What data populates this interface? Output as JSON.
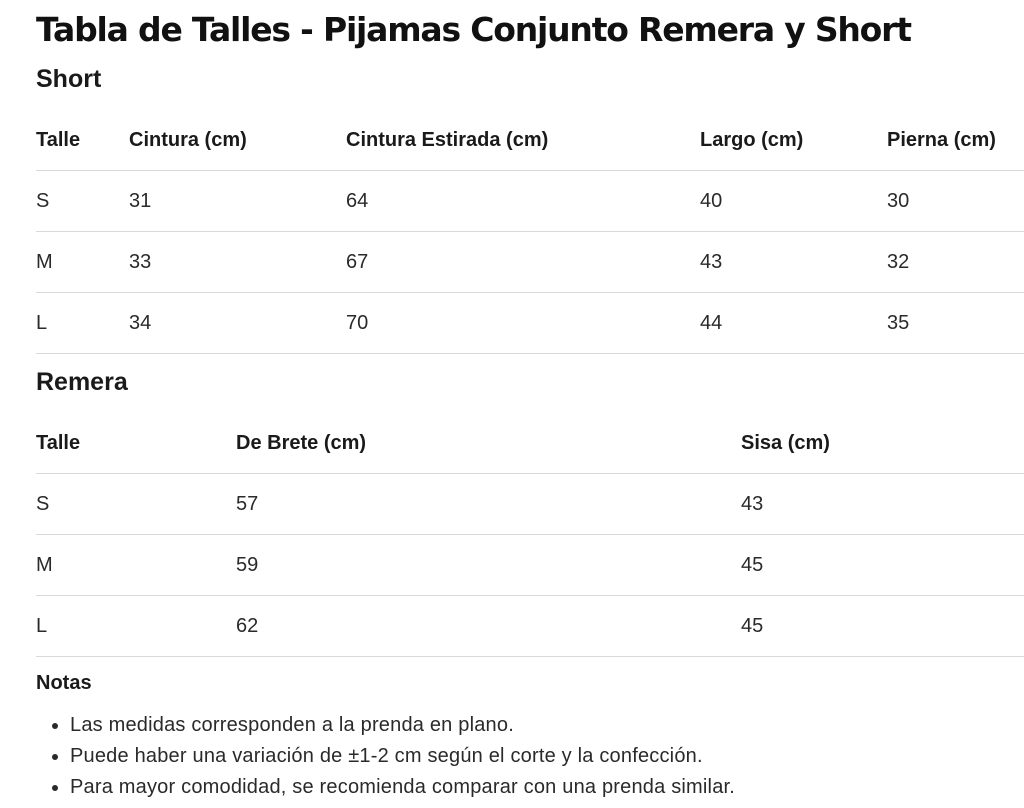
{
  "page": {
    "title": "Tabla de Talles - Pijamas Conjunto Remera y Short"
  },
  "short": {
    "title": "Short",
    "headers": [
      "Talle",
      "Cintura (cm)",
      "Cintura Estirada (cm)",
      "Largo (cm)",
      "Pierna (cm)"
    ],
    "rows": [
      [
        "S",
        "31",
        "64",
        "40",
        "30"
      ],
      [
        "M",
        "33",
        "67",
        "43",
        "32"
      ],
      [
        "L",
        "34",
        "70",
        "44",
        "35"
      ]
    ]
  },
  "remera": {
    "title": "Remera",
    "headers": [
      "Talle",
      "De Brete (cm)",
      "Sisa (cm)"
    ],
    "rows": [
      [
        "S",
        "57",
        "43"
      ],
      [
        "M",
        "59",
        "45"
      ],
      [
        "L",
        "62",
        "45"
      ]
    ]
  },
  "notes": {
    "title": "Notas",
    "items": [
      "Las medidas corresponden a la prenda en plano.",
      "Puede haber una variación de ±1-2 cm según el corte y la confección.",
      "Para mayor comodidad, se recomienda comparar con una prenda similar."
    ]
  }
}
